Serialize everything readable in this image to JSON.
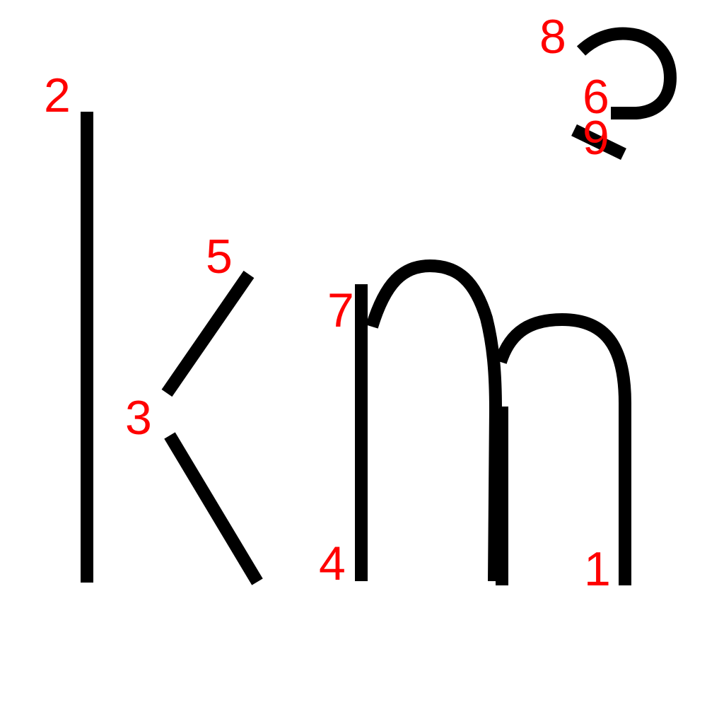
{
  "diagram": {
    "description_glyphs": [
      "k",
      "m",
      "2"
    ],
    "stroke_color": "#000000",
    "label_color": "#ff0000",
    "background_color": "#ffffff",
    "labels": {
      "one": "1",
      "two": "2",
      "three": "3",
      "four": "4",
      "five": "5",
      "six": "6",
      "seven": "7",
      "eight": "8",
      "nine": "9"
    }
  }
}
